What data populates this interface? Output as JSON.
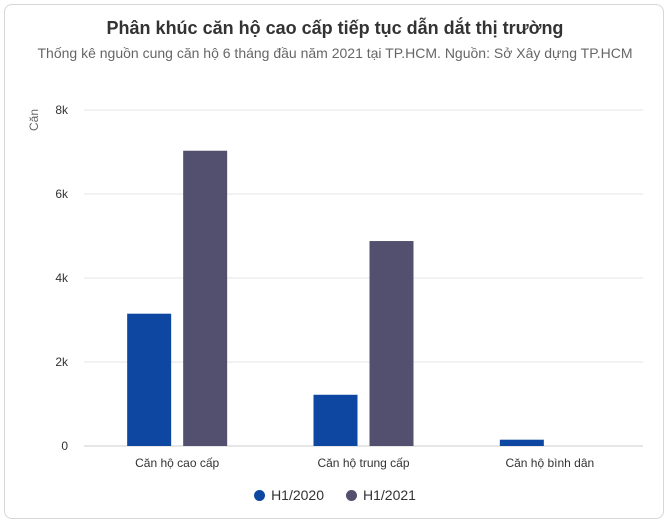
{
  "chart_data": {
    "type": "bar",
    "title": "Phân khúc căn hộ cao cấp tiếp tục dẫn dắt thị trường",
    "subtitle": "Thống kê nguồn cung căn hộ 6 tháng đầu năm 2021 tại TP.HCM. Nguồn: Sở Xây dựng TP.HCM",
    "ylabel": "Căn",
    "xlabel": "",
    "ylim": [
      0,
      8000
    ],
    "yticks": [
      0,
      2000,
      4000,
      6000,
      8000
    ],
    "ytick_labels": [
      "0",
      "2k",
      "4k",
      "6k",
      "8k"
    ],
    "categories": [
      "Căn hộ cao cấp",
      "Căn hộ trung cấp",
      "Căn hộ bình dân"
    ],
    "series": [
      {
        "name": "H1/2020",
        "color": "#0d47a1",
        "values": [
          3150,
          1220,
          150
        ]
      },
      {
        "name": "H1/2021",
        "color": "#534f6e",
        "values": [
          7030,
          4880,
          0
        ]
      }
    ],
    "grid": true,
    "legend_position": "bottom-center"
  }
}
